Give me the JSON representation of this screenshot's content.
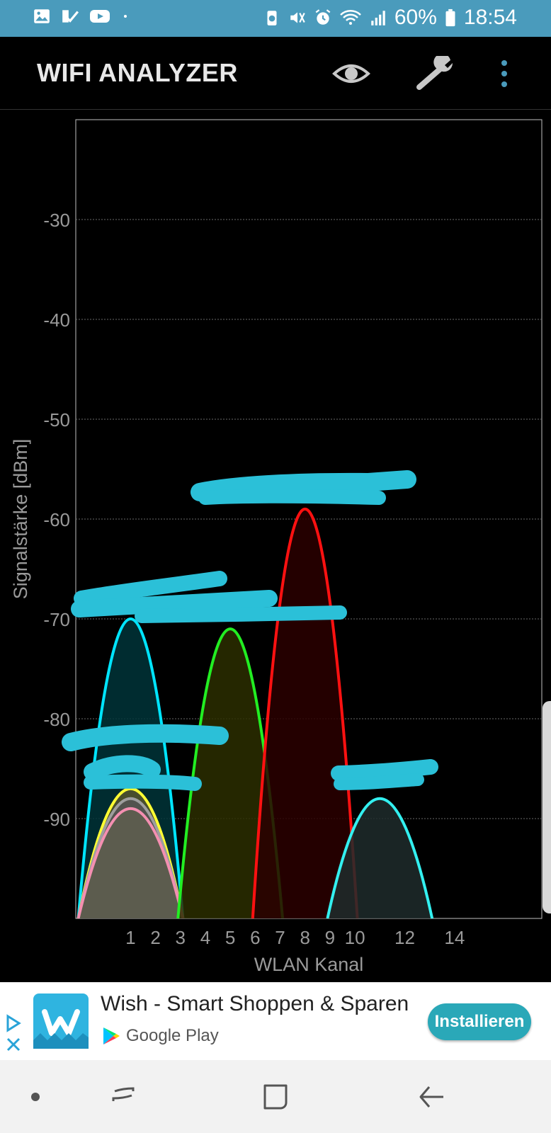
{
  "status_bar": {
    "battery": "60%",
    "time": "18:54",
    "icons": [
      "image-icon",
      "checklist-icon",
      "youtube-icon",
      "dot-icon",
      "battery-saver-icon",
      "mute-icon",
      "alarm-icon",
      "wifi-icon",
      "signal-icon",
      "battery-icon"
    ]
  },
  "app_bar": {
    "title": "WIFI ANALYZER",
    "actions": [
      "eye-icon",
      "wrench-icon",
      "more-vert-icon"
    ]
  },
  "chart_data": {
    "type": "line",
    "xlabel": "WLAN Kanal",
    "ylabel": "Signalstärke [dBm]",
    "xlim": [
      -1.2,
      17.5
    ],
    "ylim": [
      -100,
      -20
    ],
    "x_ticks": [
      1,
      2,
      3,
      4,
      5,
      6,
      7,
      8,
      9,
      10,
      12,
      14
    ],
    "y_ticks": [
      -30,
      -40,
      -50,
      -60,
      -70,
      -80,
      -90
    ],
    "grid": true,
    "series": [
      {
        "center": 1,
        "peak": -70,
        "color": "#00e5ff",
        "fill": "#003438"
      },
      {
        "center": 1,
        "peak": -87,
        "color": "#ffff33",
        "fill": "#55552b"
      },
      {
        "center": 1,
        "peak": -88,
        "color": "#9e9e9e",
        "fill": "#555555"
      },
      {
        "center": 1,
        "peak": -89,
        "color": "#f48fb1",
        "fill": "#5e5e4f"
      },
      {
        "center": 5,
        "peak": -71,
        "color": "#22ee22",
        "fill": "#2b2e00"
      },
      {
        "center": 8,
        "peak": -59,
        "color": "#ff1111",
        "fill": "#2a0000"
      },
      {
        "center": 11,
        "peak": -88,
        "color": "#33f0f0",
        "fill": "#1f2b2b"
      }
    ]
  },
  "ad": {
    "title": "Wish - Smart Shoppen & Sparen",
    "store": "Google Play",
    "cta": "Installieren"
  },
  "nav_bar": {
    "buttons": [
      "dot-icon",
      "recents-icon",
      "home-icon",
      "back-icon"
    ]
  }
}
